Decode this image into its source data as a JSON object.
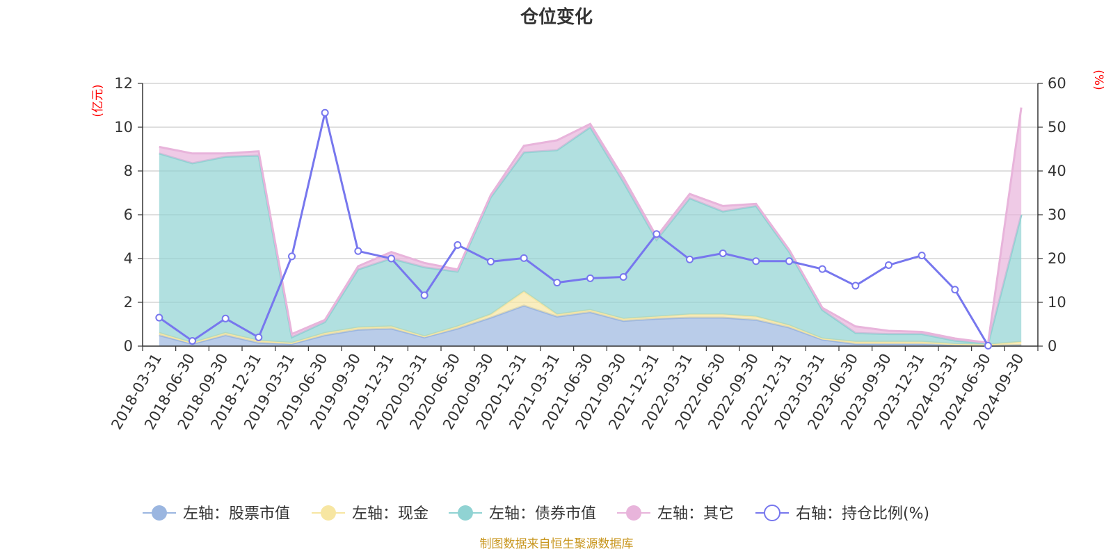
{
  "title": "仓位变化",
  "source_note": "制图数据来自恒生聚源数据库",
  "legend": [
    {
      "label": "左轴：股票市值",
      "color": "#9bb6e0",
      "kind": "area"
    },
    {
      "label": "左轴：现金",
      "color": "#f7e6a2",
      "kind": "area"
    },
    {
      "label": "左轴：债券市值",
      "color": "#90d3d3",
      "kind": "area"
    },
    {
      "label": "左轴：其它",
      "color": "#e8b4db",
      "kind": "area"
    },
    {
      "label": "右轴：持仓比例(%)",
      "color": "#7777ee",
      "kind": "line"
    }
  ],
  "chart_data": {
    "type": "area",
    "title": "仓位变化",
    "categories": [
      "2018-03-31",
      "2018-06-30",
      "2018-09-30",
      "2018-12-31",
      "2019-03-31",
      "2019-06-30",
      "2019-09-30",
      "2019-12-31",
      "2020-03-31",
      "2020-06-30",
      "2020-09-30",
      "2020-12-31",
      "2021-03-31",
      "2021-06-30",
      "2021-09-30",
      "2021-12-31",
      "2022-03-31",
      "2022-06-30",
      "2022-09-30",
      "2022-12-31",
      "2023-03-31",
      "2023-06-30",
      "2023-09-30",
      "2023-12-31",
      "2024-03-31",
      "2024-06-30",
      "2024-09-30"
    ],
    "left_axis": {
      "unit": "(亿元)",
      "ylim": [
        0,
        12
      ],
      "ticks": [
        0,
        2,
        4,
        6,
        8,
        10,
        12
      ]
    },
    "right_axis": {
      "unit": "(%)",
      "ylim": [
        0,
        60
      ],
      "ticks": [
        0,
        10,
        20,
        30,
        40,
        50,
        60
      ]
    },
    "grid": true,
    "legend_position": "bottom",
    "series": [
      {
        "name": "左轴：股票市值",
        "axis": "left",
        "type": "stacked-area",
        "color": "#9bb6e0",
        "values": [
          0.5,
          0.1,
          0.5,
          0.15,
          0.1,
          0.5,
          0.75,
          0.8,
          0.4,
          0.8,
          1.3,
          1.85,
          1.35,
          1.55,
          1.15,
          1.25,
          1.3,
          1.3,
          1.2,
          0.85,
          0.3,
          0.1,
          0.1,
          0.1,
          0.05,
          0.02,
          0.05
        ]
      },
      {
        "name": "左轴：现金",
        "axis": "left",
        "type": "stacked-area",
        "color": "#f7e6a2",
        "values": [
          0.1,
          0.05,
          0.1,
          0.1,
          0.05,
          0.1,
          0.1,
          0.1,
          0.05,
          0.1,
          0.15,
          0.65,
          0.1,
          0.1,
          0.1,
          0.1,
          0.15,
          0.15,
          0.15,
          0.1,
          0.05,
          0.1,
          0.1,
          0.1,
          0.05,
          0.05,
          0.15
        ]
      },
      {
        "name": "左轴：债券市值",
        "axis": "left",
        "type": "stacked-area",
        "color": "#90d3d3",
        "values": [
          8.2,
          8.2,
          8.05,
          8.45,
          0.25,
          0.5,
          2.65,
          3.1,
          3.15,
          2.5,
          5.35,
          6.35,
          7.5,
          8.35,
          6.25,
          3.5,
          5.3,
          4.7,
          5.05,
          3.35,
          1.3,
          0.4,
          0.35,
          0.35,
          0.15,
          0.05,
          5.8
        ]
      },
      {
        "name": "左轴：其它",
        "axis": "left",
        "type": "stacked-area",
        "color": "#e8b4db",
        "values": [
          0.3,
          0.45,
          0.15,
          0.2,
          0.15,
          0.1,
          0.15,
          0.3,
          0.2,
          0.1,
          0.1,
          0.3,
          0.45,
          0.15,
          0.2,
          0.15,
          0.2,
          0.25,
          0.1,
          0.1,
          0.1,
          0.3,
          0.15,
          0.1,
          0.1,
          0.03,
          4.9
        ]
      },
      {
        "name": "右轴：持仓比例(%)",
        "axis": "right",
        "type": "line",
        "color": "#7777ee",
        "values": [
          6.5,
          1.2,
          6.3,
          2.0,
          20.5,
          53.3,
          21.7,
          20.0,
          11.6,
          23.1,
          19.3,
          20.1,
          14.5,
          15.5,
          15.8,
          25.6,
          19.8,
          21.2,
          19.4,
          19.4,
          17.6,
          13.8,
          18.5,
          20.7,
          12.9,
          0.1,
          null
        ]
      }
    ]
  }
}
